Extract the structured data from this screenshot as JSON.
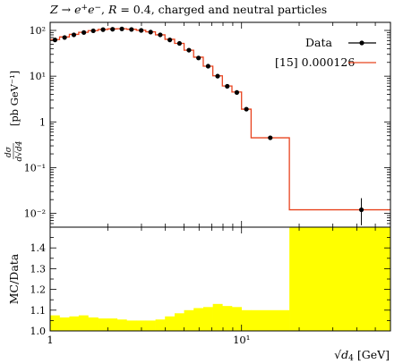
{
  "colors": {
    "data": "#000000",
    "mc_line": "#e8431e",
    "ratio_fill": "#ffff00"
  },
  "chart_data": [
    {
      "type": "line",
      "title": "Z → e⁺e⁻, R = 0.4, charged and neutral particles",
      "ylabel_top": "dσ / d√d4",
      "ylabel_unit": "[pb GeV⁻¹]",
      "yscale": "log",
      "xscale": "log",
      "xlim": [
        1,
        60
      ],
      "ylim": [
        0.005,
        150
      ],
      "y_tick_labels": [
        "10⁻²",
        "10⁻¹",
        "1",
        "10¹",
        "10²"
      ],
      "y_tick_values": [
        0.01,
        0.1,
        1,
        10,
        100
      ],
      "legend_placement": "top-right",
      "bin_edges": [
        1,
        1.12,
        1.26,
        1.41,
        1.58,
        1.78,
        2.0,
        2.24,
        2.51,
        2.82,
        3.16,
        3.55,
        3.98,
        4.47,
        5.01,
        5.62,
        6.31,
        7.08,
        7.94,
        8.91,
        10.0,
        11.22,
        17.78,
        60
      ],
      "series": [
        {
          "name": "Data",
          "x": [
            1.06,
            1.19,
            1.33,
            1.5,
            1.68,
            1.89,
            2.12,
            2.37,
            2.66,
            2.99,
            3.35,
            3.76,
            4.22,
            4.74,
            5.31,
            5.96,
            6.69,
            7.5,
            8.42,
            9.45,
            10.6,
            14.13,
            42.3
          ],
          "y": [
            62,
            70,
            80,
            90,
            98,
            104,
            106,
            108,
            105,
            100,
            92,
            80,
            62,
            52,
            37,
            25,
            16.5,
            10,
            6,
            4.4,
            1.9,
            0.45,
            0.012
          ],
          "yerr_lo": [
            0,
            0,
            0,
            0,
            0,
            0,
            0,
            0,
            0,
            0,
            0,
            0,
            0,
            0,
            0,
            0,
            0,
            0,
            0,
            0,
            0,
            0,
            0.0065
          ],
          "yerr_hi": [
            0,
            0,
            0,
            0,
            0,
            0,
            0,
            0,
            0,
            0,
            0,
            0,
            0,
            0,
            0,
            0,
            0,
            0,
            0,
            0,
            0,
            0,
            0.0095
          ]
        },
        {
          "name": "[15] 0.000126",
          "values": [
            63,
            72,
            82,
            91,
            99,
            105,
            108,
            109,
            106,
            101,
            93,
            80,
            64,
            52,
            37,
            26,
            16.5,
            10.2,
            6.1,
            4.5,
            1.9,
            0.45,
            0.012
          ]
        }
      ]
    },
    {
      "type": "area",
      "ylabel": "MC/Data",
      "xlabel": "√d4 [GeV]",
      "xscale": "log",
      "xlim": [
        1,
        60
      ],
      "ylim": [
        1.0,
        1.5
      ],
      "y_tick_labels": [
        "1.0",
        "1.1",
        "1.2",
        "1.3",
        "1.4"
      ],
      "y_tick_values": [
        1.0,
        1.1,
        1.2,
        1.3,
        1.4
      ],
      "x_tick_labels": [
        "1",
        "10¹"
      ],
      "x_tick_values": [
        1,
        10
      ],
      "bin_edges": [
        1,
        1.12,
        1.26,
        1.41,
        1.58,
        1.78,
        2.0,
        2.24,
        2.51,
        2.82,
        3.16,
        3.55,
        3.98,
        4.47,
        5.01,
        5.62,
        6.31,
        7.08,
        7.94,
        8.91,
        10.0,
        11.22,
        17.78,
        60
      ],
      "band_upper": [
        1.075,
        1.065,
        1.07,
        1.075,
        1.065,
        1.06,
        1.06,
        1.055,
        1.05,
        1.05,
        1.05,
        1.055,
        1.07,
        1.085,
        1.1,
        1.11,
        1.115,
        1.13,
        1.12,
        1.115,
        1.1,
        1.1,
        1.5
      ]
    }
  ]
}
